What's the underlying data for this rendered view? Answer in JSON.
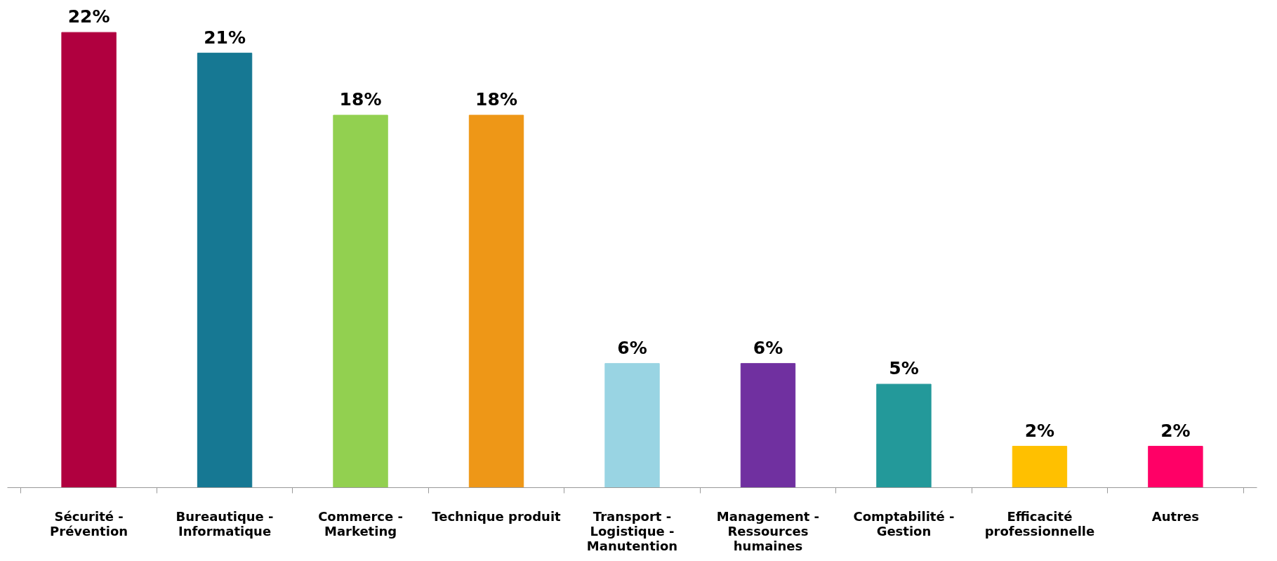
{
  "chart_data": {
    "type": "bar",
    "categories": [
      "Sécurité - Prévention",
      "Bureautique - Informatique",
      "Commerce - Marketing",
      "Technique produit",
      "Transport - Logistique - Manutention",
      "Management - Ressources humaines",
      "Comptabilité - Gestion",
      "Efficacité professionnelle",
      "Autres"
    ],
    "values": [
      22,
      21,
      18,
      18,
      6,
      6,
      5,
      2,
      2
    ],
    "colors": [
      "#b0003f",
      "#167893",
      "#92d050",
      "#ee9717",
      "#99d4e3",
      "#7030a0",
      "#23999a",
      "#ffc000",
      "#ff0066"
    ],
    "value_labels": [
      "22%",
      "21%",
      "18%",
      "18%",
      "6%",
      "6%",
      "5%",
      "2%",
      "2%"
    ],
    "grid": false
  }
}
